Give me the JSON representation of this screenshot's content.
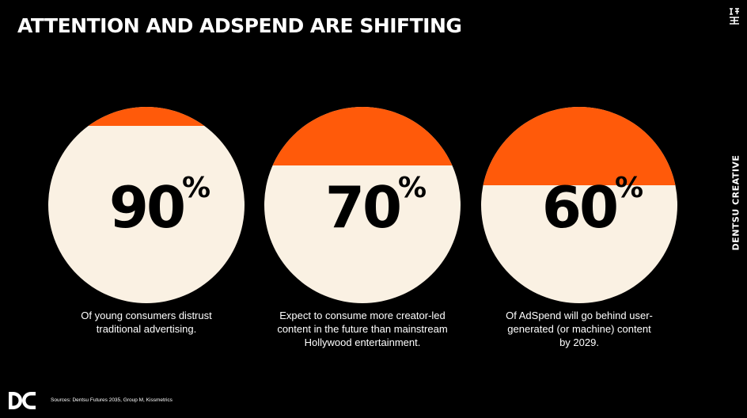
{
  "slide": {
    "title": "ATTENTION AND ADSPEND ARE SHIFTING",
    "side_brand": "DENTSU CREATIVE",
    "sources": "Sources: Dentsu Futures 2035,  Group M, Kissmetrics",
    "colors": {
      "background": "#000000",
      "circle_fill": "#FAF1E3",
      "accent": "#FF5A0A",
      "text_dark": "#000000",
      "text_light": "#FFFFFF"
    },
    "icons": {
      "logo": "dentsu-dc-logo-icon",
      "corner": "corner-mark-icon"
    }
  },
  "stats": [
    {
      "value": "90",
      "unit": "%",
      "orange_cap_fraction": 0.1,
      "caption_lines": [
        "Of young consumers distrust",
        "traditional advertising."
      ]
    },
    {
      "value": "70",
      "unit": "%",
      "orange_cap_fraction": 0.3,
      "caption_lines": [
        "Expect to consume more creator-led",
        "content in the future than mainstream",
        "Hollywood entertainment."
      ]
    },
    {
      "value": "60",
      "unit": "%",
      "orange_cap_fraction": 0.4,
      "caption_lines": [
        "Of AdSpend will go behind user-",
        "generated (or machine) content",
        "by 2029."
      ]
    }
  ]
}
